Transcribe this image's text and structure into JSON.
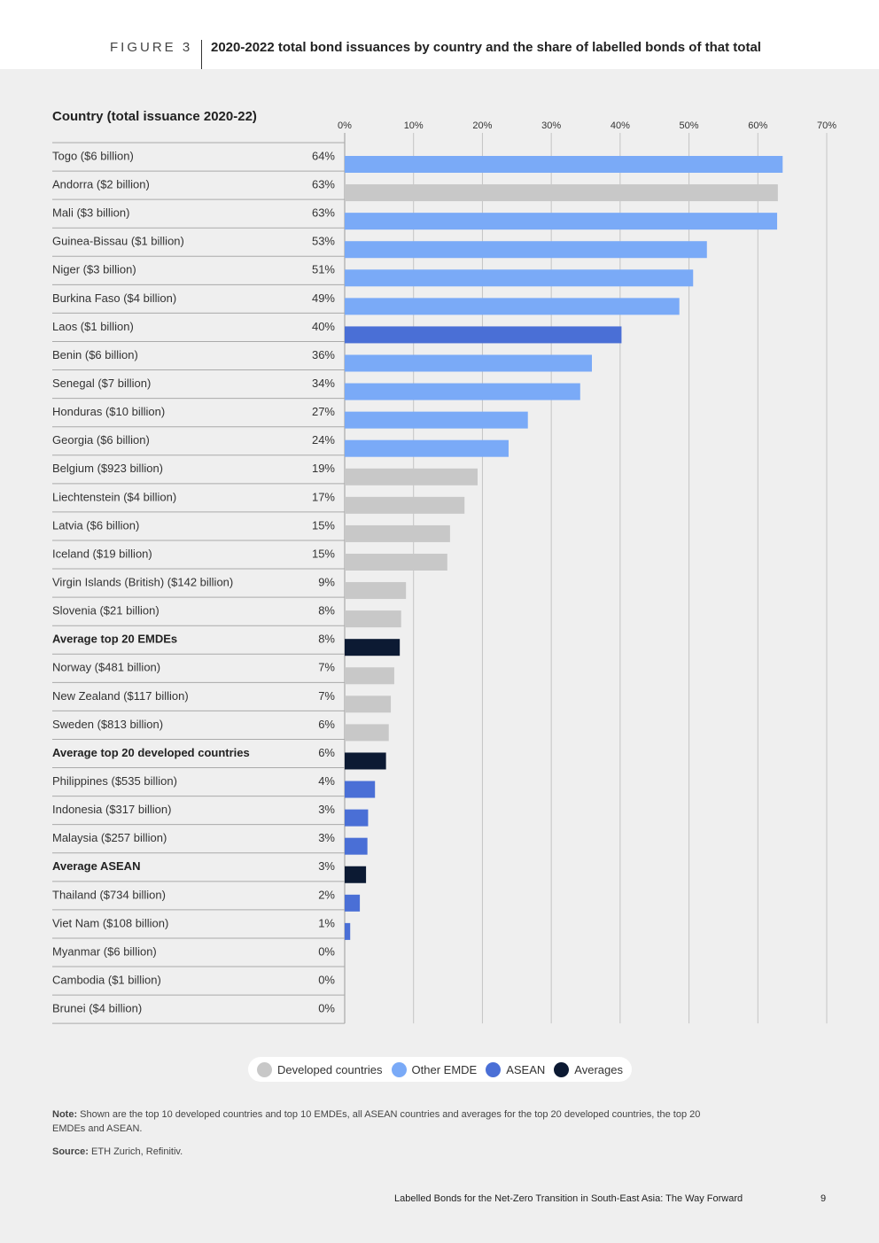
{
  "figure_label": "FIGURE 3",
  "figure_title": "2020-2022 total bond issuances by country and the share of labelled bonds of that total",
  "chart_data": {
    "type": "bar",
    "orientation": "horizontal",
    "category_header": "Country (total issuance 2020-22)",
    "categories": [
      "Togo ($6 billion)",
      "Andorra ($2 billion)",
      "Mali ($3 billion)",
      "Guinea-Bissau ($1 billion)",
      "Niger ($3 billion)",
      "Burkina Faso ($4 billion)",
      "Laos ($1 billion)",
      "Benin ($6 billion)",
      "Senegal ($7 billion)",
      "Honduras ($10 billion)",
      "Georgia ($6 billion)",
      "Belgium ($923 billion)",
      "Liechtenstein ($4 billion)",
      "Latvia ($6 billion)",
      "Iceland ($19 billion)",
      "Virgin Islands (British) ($142 billion)",
      "Slovenia ($21 billion)",
      "Average top 20 EMDEs",
      "Norway ($481 billion)",
      "New Zealand ($117 billion)",
      "Sweden ($813 billion)",
      "Average top 20 developed countries",
      "Philippines ($535 billion)",
      "Indonesia ($317 billion)",
      "Malaysia ($257 billion)",
      "Average ASEAN",
      "Thailand ($734 billion)",
      "Viet Nam ($108 billion)",
      "Myanmar ($6 billion)",
      "Cambodia ($1 billion)",
      "Brunei ($4 billion)"
    ],
    "values": [
      63.6,
      62.9,
      62.8,
      52.6,
      50.6,
      48.6,
      40.2,
      35.9,
      34.2,
      26.6,
      23.8,
      19.3,
      17.4,
      15.3,
      14.9,
      8.9,
      8.2,
      8.0,
      7.2,
      6.7,
      6.4,
      6.0,
      4.4,
      3.4,
      3.3,
      3.1,
      2.2,
      0.8,
      0,
      0,
      0
    ],
    "value_labels": [
      "64%",
      "63%",
      "63%",
      "53%",
      "51%",
      "49%",
      "40%",
      "36%",
      "34%",
      "27%",
      "24%",
      "19%",
      "17%",
      "15%",
      "15%",
      "9%",
      "8%",
      "8%",
      "7%",
      "7%",
      "6%",
      "6%",
      "4%",
      "3%",
      "3%",
      "3%",
      "2%",
      "1%",
      "0%",
      "0%",
      "0%"
    ],
    "colors": [
      "#7aaaf7",
      "#c8c8c8",
      "#7aaaf7",
      "#7aaaf7",
      "#7aaaf7",
      "#7aaaf7",
      "#4a6fd6",
      "#7aaaf7",
      "#7aaaf7",
      "#7aaaf7",
      "#7aaaf7",
      "#c8c8c8",
      "#c8c8c8",
      "#c8c8c8",
      "#c8c8c8",
      "#c8c8c8",
      "#c8c8c8",
      "#0c1a33",
      "#c8c8c8",
      "#c8c8c8",
      "#c8c8c8",
      "#0c1a33",
      "#4a6fd6",
      "#4a6fd6",
      "#4a6fd6",
      "#0c1a33",
      "#4a6fd6",
      "#4a6fd6",
      "#4a6fd6",
      "#4a6fd6",
      "#4a6fd6"
    ],
    "xlim": [
      0,
      70
    ],
    "xticks": [
      {
        "value": 0,
        "label": "0%"
      },
      {
        "value": 10,
        "label": "10%"
      },
      {
        "value": 20,
        "label": "20%"
      },
      {
        "value": 30,
        "label": "30%"
      },
      {
        "value": 40,
        "label": "40%"
      },
      {
        "value": 50,
        "label": "50%"
      },
      {
        "value": 60,
        "label": "60%"
      },
      {
        "value": 70,
        "label": "70%"
      }
    ],
    "grid": true,
    "legend": [
      {
        "name": "Developed countries",
        "color": "#c8c8c8"
      },
      {
        "name": "Other EMDE",
        "color": "#7aaaf7"
      },
      {
        "name": "ASEAN",
        "color": "#4a6fd6"
      },
      {
        "name": "Averages",
        "color": "#0c1a33"
      }
    ]
  },
  "note": {
    "label": "Note:",
    "text": "Shown are the top 10 developed countries and top 10 EMDEs, all ASEAN countries and averages for the top 20 developed countries, the top 20 EMDEs and ASEAN."
  },
  "source": {
    "label": "Source:",
    "text": "ETH Zurich, Refinitiv."
  },
  "footer": {
    "title": "Labelled Bonds for the Net-Zero Transition in South-East Asia:",
    "subtitle": "The Way Forward",
    "page": "9"
  }
}
